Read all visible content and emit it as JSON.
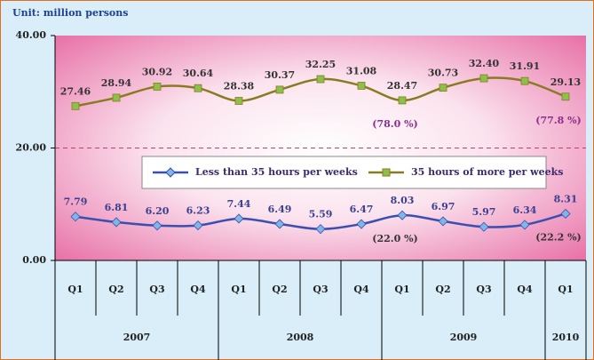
{
  "chart_data": {
    "type": "line",
    "subtitle": "Unit: million persons",
    "categories": [
      "Q1",
      "Q2",
      "Q3",
      "Q4",
      "Q1",
      "Q2",
      "Q3",
      "Q4",
      "Q1",
      "Q2",
      "Q3",
      "Q4",
      "Q1"
    ],
    "year_groups": [
      {
        "label": "2007",
        "count": 4
      },
      {
        "label": "2008",
        "count": 4
      },
      {
        "label": "2009",
        "count": 4
      },
      {
        "label": "2010",
        "count": 1
      }
    ],
    "ylim": [
      0,
      40
    ],
    "yticks": [
      {
        "value": 0,
        "label": "0.00"
      },
      {
        "value": 20,
        "label": "20.00"
      },
      {
        "value": 40,
        "label": "40.00"
      }
    ],
    "grid": "dashed",
    "legend": "center",
    "series": [
      {
        "name": "Less than 35 hours per weeks",
        "color": "#3a4fb0",
        "marker": "diamond",
        "marker_color": "#7fb6e6",
        "label_color": "#3a3f8f",
        "values": [
          7.79,
          6.81,
          6.2,
          6.23,
          7.44,
          6.49,
          5.59,
          6.47,
          8.03,
          6.97,
          5.97,
          6.34,
          8.31
        ],
        "value_labels": [
          "7.79",
          "6.81",
          "6.20",
          "6.23",
          "7.44",
          "6.49",
          "5.59",
          "6.47",
          "8.03",
          "6.97",
          "5.97",
          "6.34",
          "8.31"
        ],
        "annotations": [
          {
            "text": "(22.0 %)",
            "index": 8
          },
          {
            "text": "(22.2 %)",
            "index": 12
          }
        ],
        "annotation_color": "#333333"
      },
      {
        "name": "35 hours of more per weeks",
        "color": "#8a7a22",
        "marker": "square",
        "marker_color": "#8cc04a",
        "label_color": "#333333",
        "values": [
          27.46,
          28.94,
          30.92,
          30.64,
          28.38,
          30.37,
          32.25,
          31.08,
          28.47,
          30.73,
          32.4,
          31.91,
          29.13
        ],
        "value_labels": [
          "27.46",
          "28.94",
          "30.92",
          "30.64",
          "28.38",
          "30.37",
          "32.25",
          "31.08",
          "28.47",
          "30.73",
          "32.40",
          "31.91",
          "29.13"
        ],
        "annotations": [
          {
            "text": "(78.0 %)",
            "index": 8
          },
          {
            "text": "(77.8 %)",
            "index": 12
          }
        ],
        "annotation_color": "#8b2d8b"
      }
    ]
  }
}
